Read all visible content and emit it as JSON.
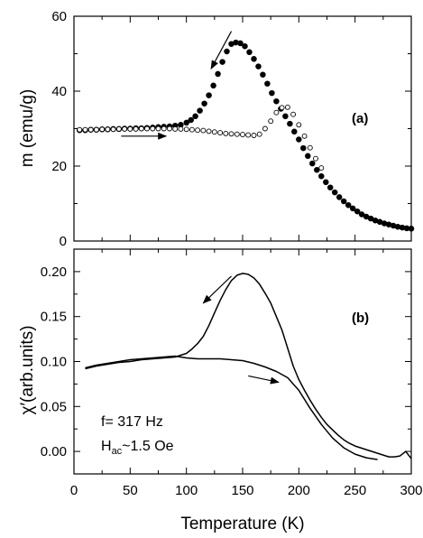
{
  "chart_data": [
    {
      "type": "scatter",
      "panel_label": "(a)",
      "title": "",
      "xlabel": "",
      "ylabel": "m (emu/g)",
      "xlim": [
        0,
        300
      ],
      "ylim": [
        0,
        60
      ],
      "x_ticks": [],
      "y_ticks": [
        0,
        20,
        40,
        60
      ],
      "grid": false,
      "series": [
        {
          "marker": "filled-circle",
          "color": "#000000",
          "x": [
            5,
            10,
            15,
            20,
            25,
            30,
            35,
            40,
            45,
            50,
            55,
            60,
            65,
            70,
            75,
            80,
            85,
            90,
            95,
            100,
            104,
            108,
            112,
            116,
            120,
            124,
            128,
            132,
            136,
            140,
            144,
            148,
            152,
            156,
            160,
            164,
            168,
            172,
            176,
            180,
            184,
            188,
            192,
            196,
            200,
            204,
            208,
            212,
            216,
            220,
            224,
            228,
            232,
            236,
            240,
            244,
            248,
            252,
            256,
            260,
            264,
            268,
            272,
            276,
            280,
            284,
            288,
            292,
            296,
            300
          ],
          "y": [
            29.6,
            29.6,
            29.7,
            29.7,
            29.8,
            29.8,
            29.9,
            29.9,
            30.0,
            30.0,
            30.1,
            30.1,
            30.2,
            30.3,
            30.4,
            30.5,
            30.6,
            30.8,
            31.0,
            31.6,
            32.3,
            33.3,
            34.8,
            36.7,
            38.9,
            41.5,
            44.6,
            47.8,
            50.6,
            52.6,
            53.0,
            52.8,
            52.0,
            50.4,
            48.6,
            46.6,
            44.4,
            42.0,
            39.5,
            37.3,
            35.3,
            33.3,
            31.3,
            29.2,
            27.1,
            24.8,
            22.7,
            20.7,
            19.0,
            17.3,
            15.7,
            14.3,
            13.0,
            11.7,
            10.6,
            9.6,
            8.7,
            7.9,
            7.1,
            6.5,
            6.0,
            5.5,
            5.1,
            4.7,
            4.4,
            4.1,
            3.8,
            3.6,
            3.4,
            3.3
          ]
        },
        {
          "marker": "open-circle",
          "color": "#000000",
          "x": [
            5,
            10,
            15,
            20,
            25,
            30,
            35,
            40,
            45,
            50,
            55,
            60,
            65,
            70,
            75,
            80,
            85,
            90,
            95,
            100,
            105,
            110,
            115,
            120,
            125,
            130,
            135,
            140,
            145,
            150,
            155,
            160,
            165,
            170,
            175,
            180,
            185,
            190,
            195,
            200,
            205,
            210,
            215,
            220
          ],
          "y": [
            29.7,
            29.7,
            29.7,
            29.7,
            29.8,
            29.8,
            29.8,
            29.9,
            29.9,
            29.9,
            29.9,
            30.0,
            30.0,
            30.0,
            30.0,
            30.0,
            30.0,
            29.9,
            29.9,
            29.8,
            29.7,
            29.6,
            29.5,
            29.3,
            29.1,
            28.9,
            28.7,
            28.6,
            28.5,
            28.4,
            28.3,
            28.2,
            28.5,
            30.0,
            32.0,
            34.3,
            35.6,
            35.7,
            33.8,
            31.0,
            28.0,
            24.9,
            22.0,
            19.5
          ]
        }
      ],
      "annotations": [
        {
          "type": "arrow",
          "from": [
            42,
            28
          ],
          "to": [
            82,
            28
          ]
        },
        {
          "type": "arrow",
          "from": [
            140,
            56
          ],
          "to": [
            122,
            46
          ]
        }
      ]
    },
    {
      "type": "line",
      "panel_label": "(b)",
      "title": "",
      "xlabel": "Temperature (K)",
      "ylabel": "χ′(arb.units)",
      "xlim": [
        0,
        300
      ],
      "ylim": [
        -0.025,
        0.225
      ],
      "x_ticks": [
        0,
        50,
        100,
        150,
        200,
        250,
        300
      ],
      "y_ticks": [
        0.0,
        0.05,
        0.1,
        0.15,
        0.2
      ],
      "y_tick_labels": [
        "0.00",
        "0.05",
        "0.10",
        "0.15",
        "0.20"
      ],
      "grid": false,
      "series": [
        {
          "color": "#000000",
          "x": [
            10,
            20,
            30,
            40,
            50,
            60,
            70,
            80,
            90,
            100,
            105,
            110,
            115,
            120,
            125,
            130,
            135,
            140,
            145,
            150,
            155,
            160,
            165,
            170,
            175,
            180,
            185,
            190,
            195,
            200,
            205,
            210,
            215,
            220,
            225,
            230,
            235,
            240,
            245,
            250,
            255,
            260,
            265,
            270,
            275,
            280,
            285,
            290,
            295,
            300
          ],
          "y": [
            0.092,
            0.095,
            0.097,
            0.099,
            0.1,
            0.102,
            0.103,
            0.104,
            0.105,
            0.109,
            0.114,
            0.12,
            0.128,
            0.14,
            0.154,
            0.168,
            0.18,
            0.19,
            0.196,
            0.198,
            0.197,
            0.193,
            0.186,
            0.176,
            0.165,
            0.15,
            0.135,
            0.115,
            0.095,
            0.08,
            0.068,
            0.057,
            0.047,
            0.038,
            0.03,
            0.024,
            0.018,
            0.013,
            0.009,
            0.006,
            0.004,
            0.002,
            0.0,
            -0.002,
            -0.004,
            -0.006,
            -0.006,
            -0.005,
            0.0,
            -0.008
          ]
        },
        {
          "color": "#000000",
          "x": [
            10,
            20,
            30,
            40,
            50,
            60,
            70,
            80,
            90,
            100,
            110,
            120,
            130,
            140,
            150,
            160,
            170,
            180,
            190,
            200,
            210,
            220,
            230,
            240,
            250,
            260,
            270
          ],
          "y": [
            0.093,
            0.096,
            0.098,
            0.1,
            0.102,
            0.103,
            0.104,
            0.105,
            0.106,
            0.104,
            0.103,
            0.103,
            0.103,
            0.102,
            0.101,
            0.098,
            0.094,
            0.089,
            0.082,
            0.068,
            0.048,
            0.03,
            0.015,
            0.004,
            -0.003,
            -0.007,
            -0.009
          ]
        }
      ],
      "annotations": [
        {
          "type": "arrow",
          "from": [
            140,
            0.195
          ],
          "to": [
            115,
            0.165
          ]
        },
        {
          "type": "arrow",
          "from": [
            155,
            0.084
          ],
          "to": [
            182,
            0.077
          ]
        }
      ],
      "notes": {
        "freq": "f= 317 Hz",
        "field_main": "H",
        "field_sub": "ac",
        "field_rest": "~1.5 Oe"
      }
    }
  ]
}
